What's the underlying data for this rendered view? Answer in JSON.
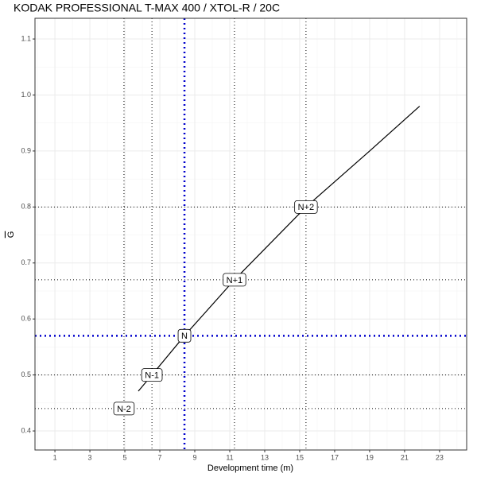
{
  "chart_data": {
    "type": "line",
    "title": "KODAK PROFESSIONAL T-MAX 400 / XTOL-R / 20C",
    "x_label": "Development time (m)",
    "y_label": "G",
    "x": [
      5.77,
      6.55,
      8.41,
      11.27,
      15.36,
      19,
      21.86
    ],
    "series": [
      {
        "color": "#000000",
        "values": [
          0.471,
          0.5,
          0.57,
          0.67,
          0.8,
          0.9,
          0.98
        ]
      }
    ],
    "levels": [
      {
        "label": "N-2",
        "x": 4.95,
        "y": 0.44,
        "color": "#000000"
      },
      {
        "label": "N-1",
        "x": 6.55,
        "y": 0.5,
        "color": "#000000"
      },
      {
        "label": "N",
        "x": 8.41,
        "y": 0.57,
        "color": "#0000cc"
      },
      {
        "label": "N+1",
        "x": 11.27,
        "y": 0.67,
        "color": "#000000"
      },
      {
        "label": "N+2",
        "x": 15.36,
        "y": 0.8,
        "color": "#000000"
      }
    ],
    "xlim": [
      -0.14,
      24.55
    ],
    "ylim": [
      0.366,
      1.137
    ],
    "xticks": [
      1,
      3,
      5,
      7,
      9,
      11,
      13,
      15,
      17,
      19,
      21,
      23
    ],
    "yticks": [
      0.4,
      0.5,
      0.6,
      0.7,
      0.8,
      0.9,
      {
        "value": 1,
        "label": "1.0"
      },
      1.1
    ],
    "x_minor": [
      0,
      2,
      4,
      6,
      8,
      10,
      12,
      14,
      16,
      18,
      20,
      22,
      24
    ],
    "y_minor": [
      0.45,
      0.55,
      0.65,
      0.75,
      0.85,
      0.95,
      1.05
    ],
    "grid": true
  }
}
